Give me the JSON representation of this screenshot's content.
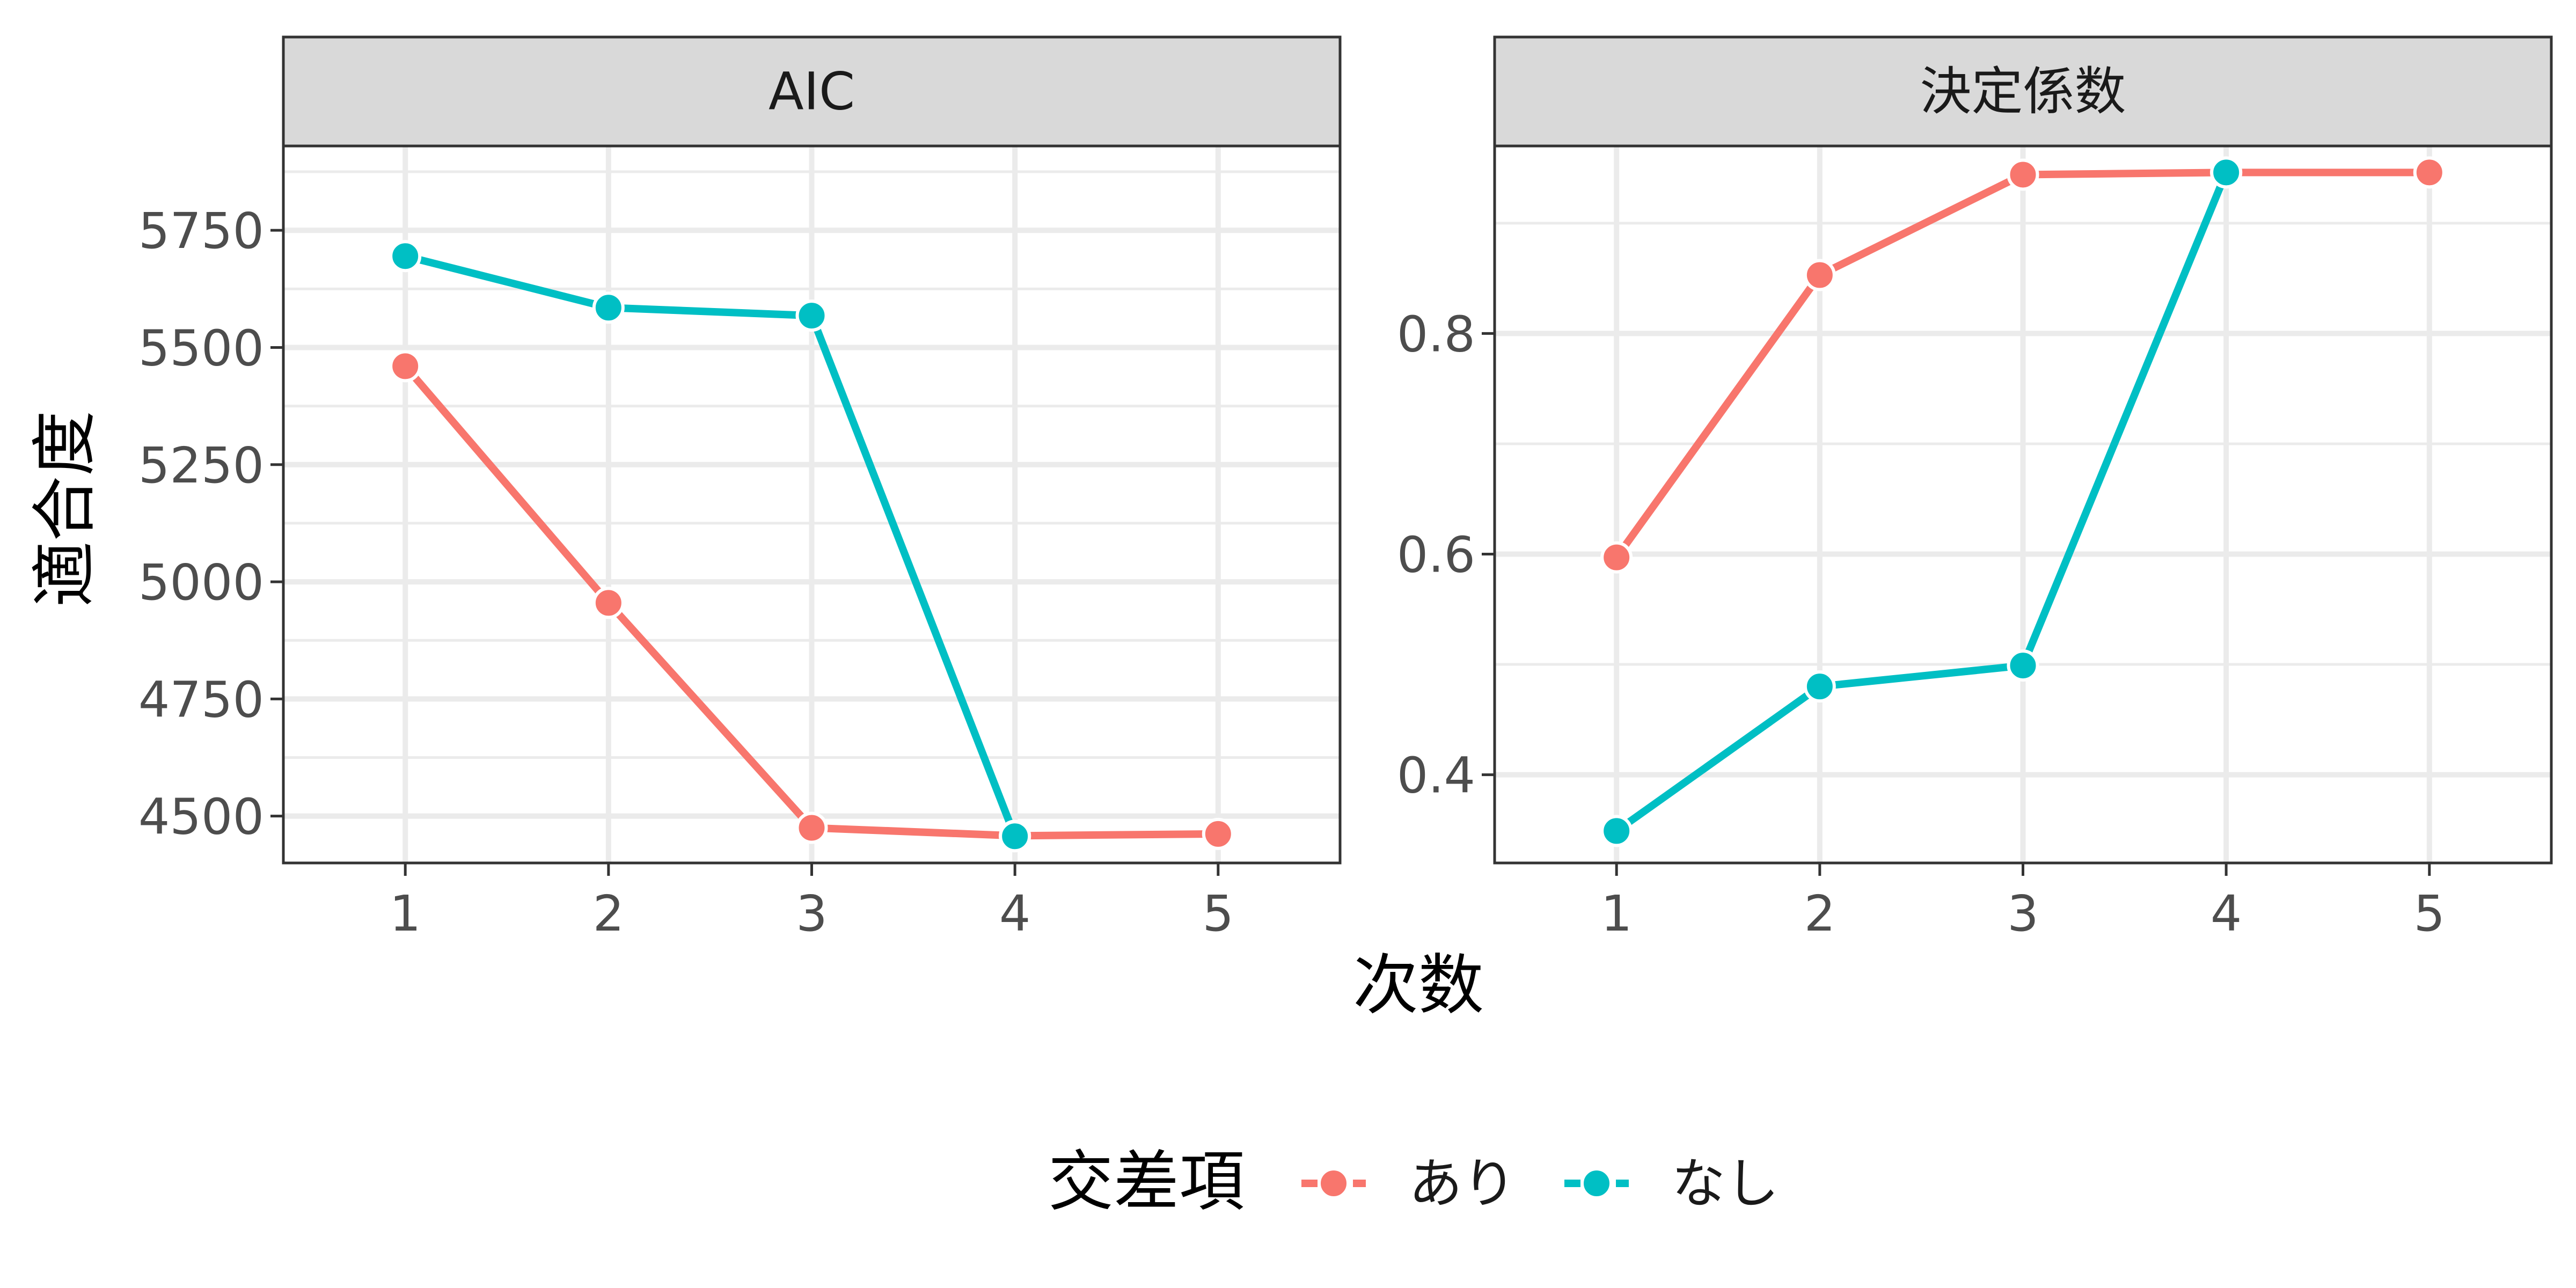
{
  "chart_data": {
    "type": "line",
    "xlabel": "次数",
    "ylabel": "適合度",
    "x": [
      1,
      2,
      3,
      4,
      5
    ],
    "legend": {
      "title": "交差項",
      "position": "bottom",
      "entries": [
        {
          "label": "あり",
          "color": "#F8766D"
        },
        {
          "label": "なし",
          "color": "#00BFC4"
        }
      ]
    },
    "grid": true,
    "panels": [
      {
        "title": "AIC",
        "ylim": [
          4400,
          5930
        ],
        "yticks": [
          4500,
          4750,
          5000,
          5250,
          5500,
          5750
        ],
        "ytick_labels": [
          "4500",
          "4750",
          "5000",
          "5250",
          "5500",
          "5750"
        ],
        "series": [
          {
            "name": "あり",
            "color": "#F8766D",
            "x": [
              1,
              2,
              3,
              4,
              5
            ],
            "values": [
              5460,
              4955,
              4475,
              4458,
              4462
            ]
          },
          {
            "name": "なし",
            "color": "#00BFC4",
            "x": [
              1,
              2,
              3,
              4
            ],
            "values": [
              5695,
              5585,
              5568,
              4457
            ]
          }
        ]
      },
      {
        "title": "決定係数",
        "ylim": [
          0.32,
          0.97
        ],
        "yticks": [
          0.4,
          0.6,
          0.8
        ],
        "ytick_labels": [
          "0.4",
          "0.6",
          "0.8"
        ],
        "series": [
          {
            "name": "あり",
            "color": "#F8766D",
            "x": [
              1,
              2,
              3,
              4,
              5
            ],
            "values": [
              0.597,
              0.853,
              0.944,
              0.946,
              0.946
            ]
          },
          {
            "name": "なし",
            "color": "#00BFC4",
            "x": [
              1,
              2,
              3,
              4
            ],
            "values": [
              0.349,
              0.48,
              0.499,
              0.946
            ]
          }
        ]
      }
    ],
    "xticks": [
      1,
      2,
      3,
      4,
      5
    ],
    "xtick_labels": [
      "1",
      "2",
      "3",
      "4",
      "5"
    ]
  }
}
